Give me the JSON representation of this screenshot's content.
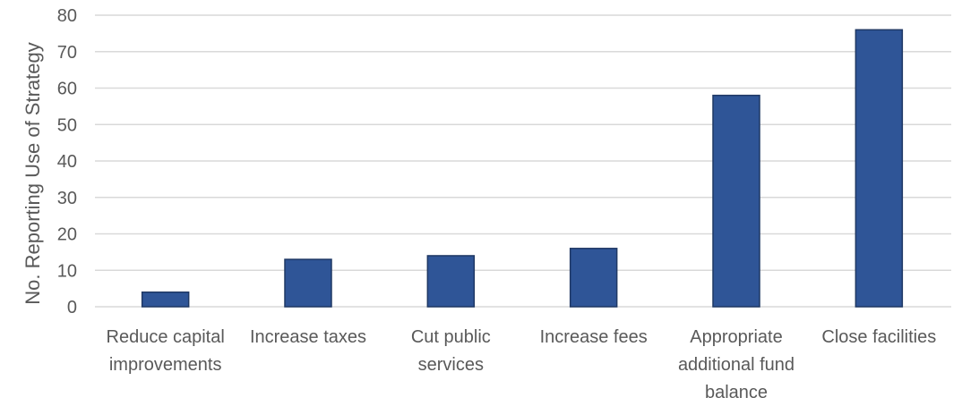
{
  "chart_data": {
    "type": "bar",
    "title": "",
    "xlabel": "",
    "ylabel": "No. Reporting Use of Strategy",
    "ylim": [
      0,
      80
    ],
    "yticks": [
      0,
      10,
      20,
      30,
      40,
      50,
      60,
      70,
      80
    ],
    "grid": true,
    "legend": "none",
    "categories": [
      [
        "Reduce capital",
        "improvements"
      ],
      [
        "Increase taxes"
      ],
      [
        "Cut public",
        "services"
      ],
      [
        "Increase fees"
      ],
      [
        "Appropriate",
        "additional fund",
        "balance"
      ],
      [
        "Close facilities"
      ]
    ],
    "values": [
      4,
      13,
      14,
      16,
      58,
      76
    ],
    "colors": {
      "bar": "#2F5597",
      "bar_edge": "#1F3864",
      "grid": "#D9D9D9",
      "text": "#595959"
    }
  }
}
